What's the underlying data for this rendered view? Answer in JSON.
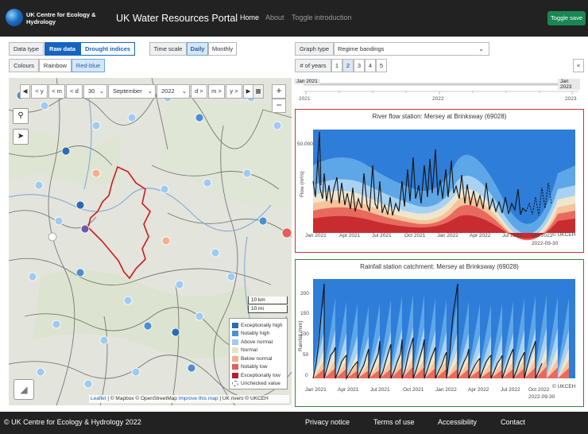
{
  "header": {
    "logo_text": "UK Centre for Ecology & Hydrology",
    "portal_title": "UK Water Resources Portal",
    "nav": [
      "Home",
      "About",
      "Toggle introduction"
    ],
    "toggle_save": "Toggle save"
  },
  "controls": {
    "data_type_label": "Data type",
    "data_type_options": [
      "Raw data",
      "Drought indices"
    ],
    "time_scale_label": "Time scale",
    "time_scale_options": [
      "Daily",
      "Monthly"
    ],
    "colours_label": "Colours",
    "colours_options": [
      "Rainbow",
      "Red-blue"
    ],
    "graph_type_label": "Graph type",
    "graph_type_value": "Regime bandings",
    "years_label": "# of years",
    "years_options": [
      "1",
      "2",
      "3",
      "4",
      "5"
    ],
    "years_selected": "2",
    "close": "×"
  },
  "map_toolbar": {
    "back_year": "< y",
    "back_month": "< m",
    "back_day": "< d",
    "day": "30",
    "month": "September",
    "year": "2022",
    "fwd_day": "d >",
    "fwd_month": "m >",
    "fwd_year": "y >"
  },
  "map": {
    "zoom_in": "+",
    "zoom_out": "−",
    "scale_km": "10 km",
    "scale_mi": "10 mi",
    "legend": [
      {
        "label": "Exceptionally high",
        "color": "#2b6cb0"
      },
      {
        "label": "Notably high",
        "color": "#4a90d0"
      },
      {
        "label": "Above normal",
        "color": "#9fcbf0"
      },
      {
        "label": "Normal",
        "color": "#e8e0c8"
      },
      {
        "label": "Below normal",
        "color": "#f4b08a"
      },
      {
        "label": "Notably low",
        "color": "#e0605a"
      },
      {
        "label": "Exceptionally low",
        "color": "#b0202a"
      },
      {
        "label": "Unchecked value",
        "color": "#ffffff"
      }
    ],
    "attribution_leaflet": "Leaflet",
    "attribution_rest": "| © Mapbox © OpenStreetMap",
    "attribution_improve": "Improve this map",
    "attribution_tail": "| UK rivers © UKCEH"
  },
  "slider": {
    "start_label": "Jan 2021",
    "end_label": "Jan 2023",
    "ticks": [
      "2021",
      "2022",
      "2023"
    ]
  },
  "river_chart": {
    "title": "River flow station: Mersey at Brinksway (69028)",
    "ylabel": "Flow (m³/s)",
    "ytick_top": "50.000",
    "x_ticks": [
      "Jan 2021",
      "Apr 2021",
      "Jul 2021",
      "Oct 2021",
      "Jan 2022",
      "Apr 2022",
      "Jul 2022",
      "Oct 2022"
    ],
    "date_label": "2022-09-30",
    "credit": "© UKCEH",
    "border_color": "#c0392b"
  },
  "rain_chart": {
    "title": "Rainfall station catchment: Mersey at Brinksway (69028)",
    "ylabel": "Rainfall (mm)",
    "y_ticks": [
      "0",
      "50",
      "100",
      "150",
      "200"
    ],
    "x_ticks": [
      "Jan 2021",
      "Apr 2021",
      "Jul 2021",
      "Oct 2021",
      "Jan 2022",
      "Apr 2022",
      "Jul 2022",
      "Oct 2022"
    ],
    "date_label": "2022-09-30",
    "credit": "© UKCEH",
    "border_color": "#2e8b3a"
  },
  "footer": {
    "copyright": "© UK Centre for Ecology & Hydrology 2022",
    "links": [
      "Privacy notice",
      "Terms of use",
      "Accessibility",
      "Contact"
    ]
  }
}
